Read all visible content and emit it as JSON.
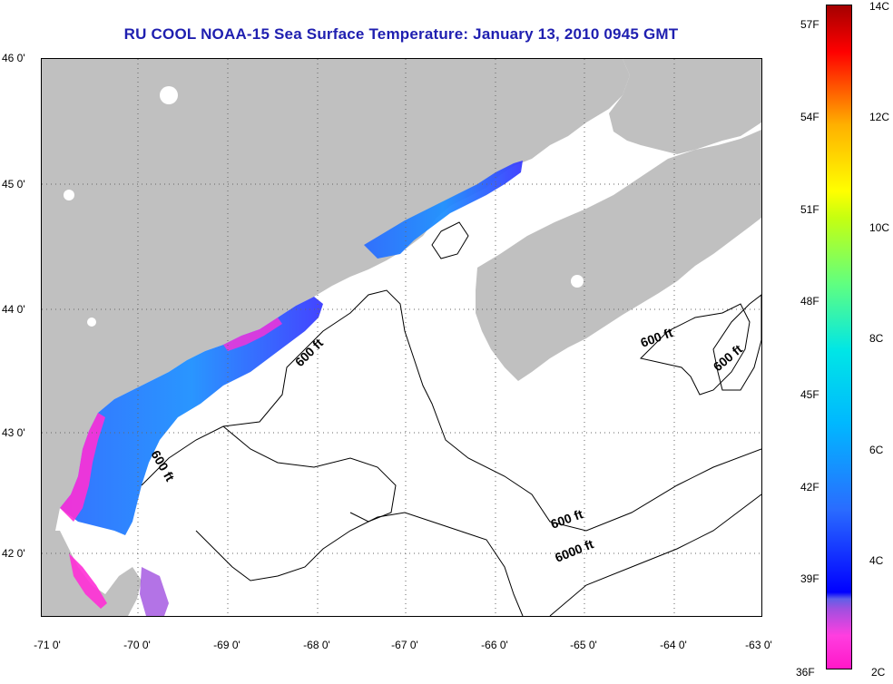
{
  "title": "RU COOL  NOAA-15  Sea Surface Temperature:  January 13, 2010 0945 GMT",
  "map": {
    "lat_labels": [
      "46 0'",
      "45 0'",
      "44 0'",
      "43 0'",
      "42 0'"
    ],
    "lon_labels": [
      "-71 0'",
      "-70 0'",
      "-69 0'",
      "-68 0'",
      "-67 0'",
      "-66 0'",
      "-65 0'",
      "-64 0'",
      "-63 0'"
    ],
    "contour_labels": [
      "600 ft",
      "600 ft",
      "600 ft",
      "600 ft",
      "600 ft",
      "6000 ft"
    ],
    "land_color": "#c0c0c0",
    "no_data_color": "#ffffff"
  },
  "colorbar": {
    "fahrenheit_labels": [
      "57F",
      "54F",
      "51F",
      "48F",
      "45F",
      "42F",
      "39F",
      "36F"
    ],
    "celsius_labels": [
      "14C",
      "12C",
      "10C",
      "8C",
      "6C",
      "4C",
      "2C"
    ],
    "range_c": [
      2,
      14
    ],
    "range_f": [
      36,
      57
    ]
  }
}
